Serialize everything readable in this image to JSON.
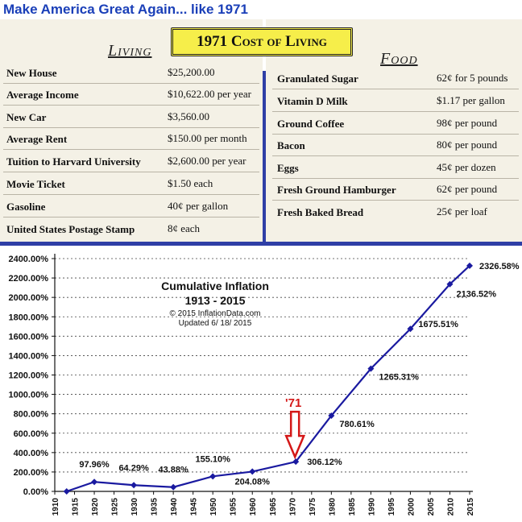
{
  "headline": "Make America Great Again... like 1971",
  "banner": "1971 Cost of Living",
  "living": {
    "heading": "Living",
    "rows": [
      {
        "item": "New House",
        "price": "$25,200.00"
      },
      {
        "item": "Average Income",
        "price": "$10,622.00 per year"
      },
      {
        "item": "New Car",
        "price": "$3,560.00"
      },
      {
        "item": "Average Rent",
        "price": "$150.00 per month"
      },
      {
        "item": "Tuition to Harvard University",
        "price": "$2,600.00 per year"
      },
      {
        "item": "Movie Ticket",
        "price": "$1.50 each"
      },
      {
        "item": "Gasoline",
        "price": "40¢ per gallon"
      },
      {
        "item": "United States Postage Stamp",
        "price": "8¢ each"
      }
    ]
  },
  "food": {
    "heading": "Food",
    "rows": [
      {
        "item": "Granulated Sugar",
        "price": "62¢ for 5 pounds"
      },
      {
        "item": "Vitamin D Milk",
        "price": "$1.17 per gallon"
      },
      {
        "item": "Ground Coffee",
        "price": "98¢ per pound"
      },
      {
        "item": "Bacon",
        "price": "80¢ per pound"
      },
      {
        "item": "Eggs",
        "price": "45¢ per dozen"
      },
      {
        "item": "Fresh Ground Hamburger",
        "price": "62¢ per pound"
      },
      {
        "item": "Fresh Baked Bread",
        "price": "25¢ per loaf"
      }
    ]
  },
  "chart_data": {
    "type": "line",
    "title": "Cumulative Inflation",
    "subtitle": "1913 - 2015",
    "copyright": "© 2015 InflationData.com",
    "updated": "Updated  6/ 18/ 2015",
    "annotation": "'71",
    "annotation_x": 1971,
    "x": [
      1913,
      1920,
      1930,
      1940,
      1950,
      1960,
      1971,
      1980,
      1990,
      2000,
      2010,
      2015
    ],
    "y": [
      0,
      97.96,
      64.29,
      43.88,
      155.1,
      204.08,
      306.12,
      780.61,
      1265.31,
      1675.51,
      2136.52,
      2326.58
    ],
    "labels": [
      "",
      "97.96%",
      "64.29%",
      "43.88%",
      "155.10%",
      "204.08%",
      "306.12%",
      "780.61%",
      "1265.31%",
      "1675.51%",
      "2136.52%",
      "2326.58%"
    ],
    "xlim": [
      1910,
      2015
    ],
    "ylim": [
      0,
      2400
    ],
    "xticks": [
      "1910",
      "1915",
      "1920",
      "1925",
      "1930",
      "1935",
      "1940",
      "1945",
      "1950",
      "1955",
      "1960",
      "1965",
      "1970",
      "1975",
      "1980",
      "1985",
      "1990",
      "1995",
      "2000",
      "2005",
      "2010",
      "2015"
    ],
    "yticks": [
      "0.00%",
      "200.00%",
      "400.00%",
      "600.00%",
      "800.00%",
      "1000.00%",
      "1200.00%",
      "1400.00%",
      "1600.00%",
      "1800.00%",
      "2000.00%",
      "2200.00%",
      "2400.00%"
    ],
    "grid": true,
    "line_color": "#1a1aa0",
    "arrow_color": "#d41818"
  }
}
